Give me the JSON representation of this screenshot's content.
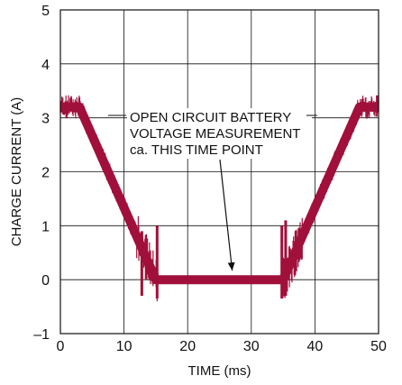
{
  "chart_data": {
    "type": "line",
    "xlabel": "TIME (ms)",
    "ylabel": "CHARGE CURRENT (A)",
    "xlim": [
      0,
      50
    ],
    "ylim": [
      -1,
      5
    ],
    "x_ticks": [
      0,
      10,
      20,
      30,
      40,
      50
    ],
    "y_ticks": [
      -1,
      0,
      1,
      2,
      3,
      4,
      5
    ],
    "x_tick_labels": [
      "0",
      "10",
      "20",
      "30",
      "40",
      "50"
    ],
    "y_tick_labels": [
      "–1",
      "0",
      "1",
      "2",
      "3",
      "4",
      "5"
    ],
    "grid": true,
    "series": [
      {
        "color": "#a0103a",
        "x": [
          0,
          3,
          15,
          35,
          47,
          50
        ],
        "y": [
          3.2,
          3.2,
          0,
          0,
          3.2,
          3.2
        ]
      }
    ],
    "annotations": [
      {
        "lines": [
          "OPEN CIRCUIT BATTERY",
          "VOLTAGE MEASUREMENT",
          "ca. THIS TIME POINT"
        ],
        "target": {
          "x": 27,
          "y": 0
        }
      }
    ]
  }
}
